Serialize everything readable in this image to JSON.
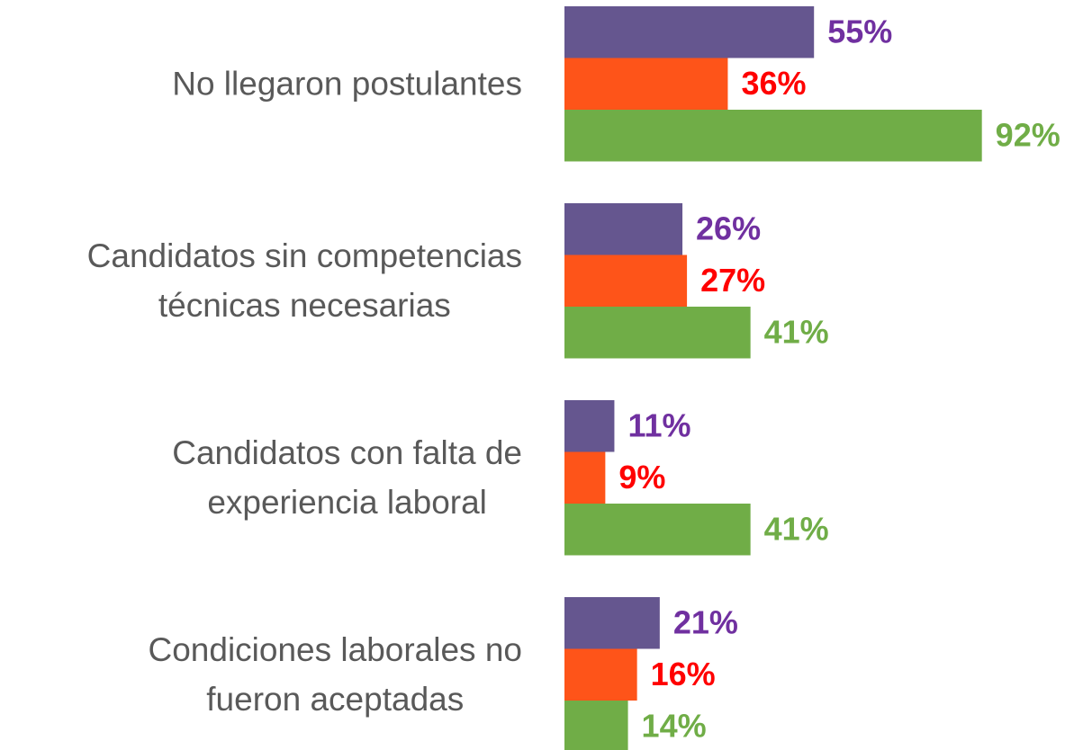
{
  "chart_data": {
    "type": "barh",
    "categories": [
      "No llegaron postulantes",
      "Candidatos sin competencias\ntécnicas necesarias",
      "Candidatos con falta de\nexperiencia laboral",
      "Condiciones laborales no\nfueron aceptadas"
    ],
    "series": [
      {
        "color": "#65568f",
        "label_color": "#7030a0",
        "values": [
          55,
          26,
          11,
          21
        ],
        "value_labels": [
          "55%",
          "26%",
          "11%",
          "21%"
        ]
      },
      {
        "color": "#fe5419",
        "label_color": "#ff0000",
        "values": [
          36,
          27,
          9,
          16
        ],
        "value_labels": [
          "36%",
          "27%",
          "9%",
          "16%"
        ]
      },
      {
        "color": "#70ad47",
        "label_color": "#70ad47",
        "values": [
          92,
          41,
          41,
          14
        ],
        "value_labels": [
          "92%",
          "41%",
          "41%",
          "14%"
        ]
      }
    ],
    "xlim": [
      0,
      100
    ]
  }
}
